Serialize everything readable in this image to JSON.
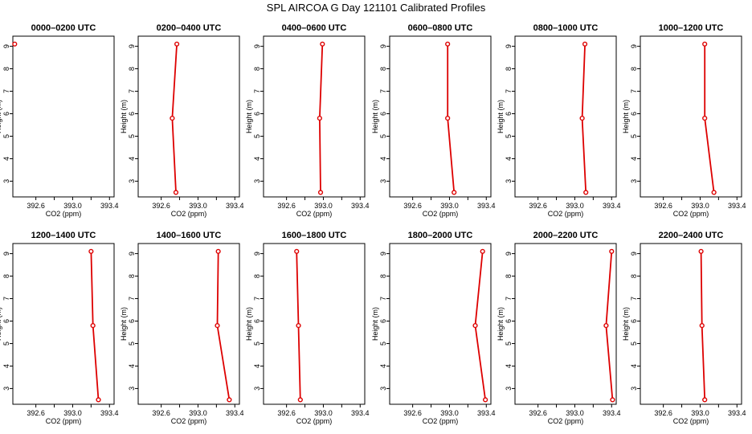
{
  "colors": {
    "series": "#dd0000",
    "axis": "#000000",
    "background": "#ffffff"
  },
  "chart_data": {
    "type": "line",
    "title": "SPL AIRCOA G  Day 121101  Calibrated Profiles",
    "xlabel": "CO2 (ppm)",
    "ylabel": "Height (m)",
    "xlim": [
      392.35,
      393.45
    ],
    "ylim": [
      2.3,
      9.45
    ],
    "xticks": [
      "392.6",
      "393.0",
      "393.4"
    ],
    "xtick_values": [
      392.6,
      393.0,
      393.4
    ],
    "xminor": [
      392.8,
      393.2
    ],
    "yticks": [
      "3",
      "4",
      "5",
      "6",
      "7",
      "8",
      "9"
    ],
    "ytick_values": [
      3,
      4,
      5,
      6,
      7,
      8,
      9
    ],
    "panels": [
      {
        "title": "0000–0200 UTC",
        "points": [
          {
            "x": 392.37,
            "y": 9.1
          }
        ]
      },
      {
        "title": "0200–0400 UTC",
        "points": [
          {
            "x": 392.76,
            "y": 2.5
          },
          {
            "x": 392.72,
            "y": 5.8
          },
          {
            "x": 392.77,
            "y": 9.1
          }
        ]
      },
      {
        "title": "0400–0600 UTC",
        "points": [
          {
            "x": 392.97,
            "y": 2.5
          },
          {
            "x": 392.96,
            "y": 5.8
          },
          {
            "x": 392.99,
            "y": 9.1
          }
        ]
      },
      {
        "title": "0600–0800 UTC",
        "points": [
          {
            "x": 393.05,
            "y": 2.5
          },
          {
            "x": 392.98,
            "y": 5.8
          },
          {
            "x": 392.98,
            "y": 9.1
          }
        ]
      },
      {
        "title": "0800–1000 UTC",
        "points": [
          {
            "x": 393.12,
            "y": 2.5
          },
          {
            "x": 393.08,
            "y": 5.8
          },
          {
            "x": 393.11,
            "y": 9.1
          }
        ]
      },
      {
        "title": "1000–1200 UTC",
        "points": [
          {
            "x": 393.15,
            "y": 2.5
          },
          {
            "x": 393.05,
            "y": 5.8
          },
          {
            "x": 393.05,
            "y": 9.1
          }
        ]
      },
      {
        "title": "1200–1400 UTC",
        "points": [
          {
            "x": 393.28,
            "y": 2.5
          },
          {
            "x": 393.22,
            "y": 5.8
          },
          {
            "x": 393.2,
            "y": 9.1
          }
        ]
      },
      {
        "title": "1400–1600 UTC",
        "points": [
          {
            "x": 393.34,
            "y": 2.5
          },
          {
            "x": 393.21,
            "y": 5.8
          },
          {
            "x": 393.22,
            "y": 9.1
          }
        ]
      },
      {
        "title": "1600–1800 UTC",
        "points": [
          {
            "x": 392.75,
            "y": 2.5
          },
          {
            "x": 392.73,
            "y": 5.8
          },
          {
            "x": 392.71,
            "y": 9.1
          }
        ]
      },
      {
        "title": "1800–2000 UTC",
        "points": [
          {
            "x": 393.39,
            "y": 2.5
          },
          {
            "x": 393.28,
            "y": 5.8
          },
          {
            "x": 393.36,
            "y": 9.1
          }
        ]
      },
      {
        "title": "2000–2200 UTC",
        "points": [
          {
            "x": 393.41,
            "y": 2.5
          },
          {
            "x": 393.34,
            "y": 5.8
          },
          {
            "x": 393.4,
            "y": 9.1
          }
        ]
      },
      {
        "title": "2200–2400 UTC",
        "points": [
          {
            "x": 393.05,
            "y": 2.5
          },
          {
            "x": 393.02,
            "y": 5.8
          },
          {
            "x": 393.01,
            "y": 9.1
          }
        ]
      }
    ]
  }
}
